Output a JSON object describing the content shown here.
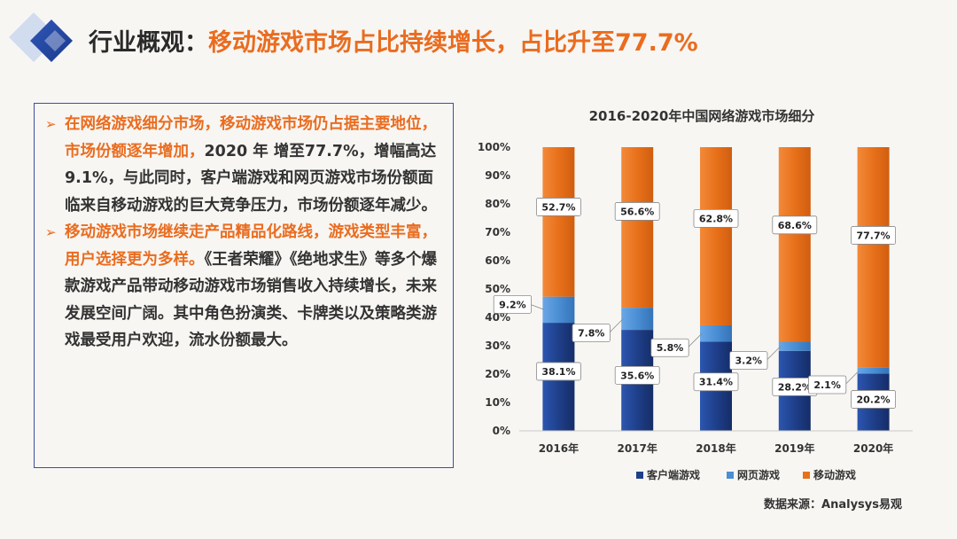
{
  "header": {
    "title_prefix": "行业概观：",
    "title_main": "移动游戏市场占比持续增长，占比升至77.7%"
  },
  "textbox": {
    "bullets": [
      {
        "highlight": "在网络游戏细分市场，移动游戏市场仍占据主要地位，市场份额逐年增加，",
        "body": "2020 年 增至77.7%，增幅高达9.1%，与此同时，客户端游戏和网页游戏市场份额面临来自移动游戏的巨大竞争压力，市场份额逐年减少。"
      },
      {
        "highlight": "移动游戏市场继续走产品精品化路线，游戏类型丰富，用户选择更为多样。",
        "body": "《王者荣耀》《绝地求生》等多个爆款游戏产品带动移动游戏市场销售收入持续增长，未来发展空间广阔。其中角色扮演类、卡牌类以及策略类游戏最受用户欢迎，流水份额最大。"
      }
    ]
  },
  "source": "数据来源：Analysys易观",
  "colors": {
    "client": "#1f3f8a",
    "web": "#4a8ed4",
    "mobile": "#e8701a",
    "accent": "#ea6c1f",
    "border": "#3c4f9e"
  },
  "chart_data": {
    "type": "bar",
    "stacked": true,
    "title": "2016-2020年中国网络游戏市场细分",
    "categories": [
      "2016年",
      "2017年",
      "2018年",
      "2019年",
      "2020年"
    ],
    "series": [
      {
        "name": "客户端游戏",
        "values": [
          38.1,
          35.6,
          31.4,
          28.2,
          20.2
        ],
        "labels": [
          "38.1%",
          "35.6%",
          "31.4%",
          "28.2%",
          "20.2%"
        ]
      },
      {
        "name": "网页游戏",
        "values": [
          9.2,
          7.8,
          5.8,
          3.2,
          2.1
        ],
        "labels": [
          "9.2%",
          "7.8%",
          "5.8%",
          "3.2%",
          "2.1%"
        ]
      },
      {
        "name": "移动游戏",
        "values": [
          52.7,
          56.6,
          62.8,
          68.6,
          77.7
        ],
        "labels": [
          "52.7%",
          "56.6%",
          "62.8%",
          "68.6%",
          "77.7%"
        ]
      }
    ],
    "ylim": [
      0,
      100
    ],
    "yticks": [
      "0%",
      "10%",
      "20%",
      "30%",
      "40%",
      "50%",
      "60%",
      "70%",
      "80%",
      "90%",
      "100%"
    ],
    "legend": "bottom",
    "grid": false
  }
}
